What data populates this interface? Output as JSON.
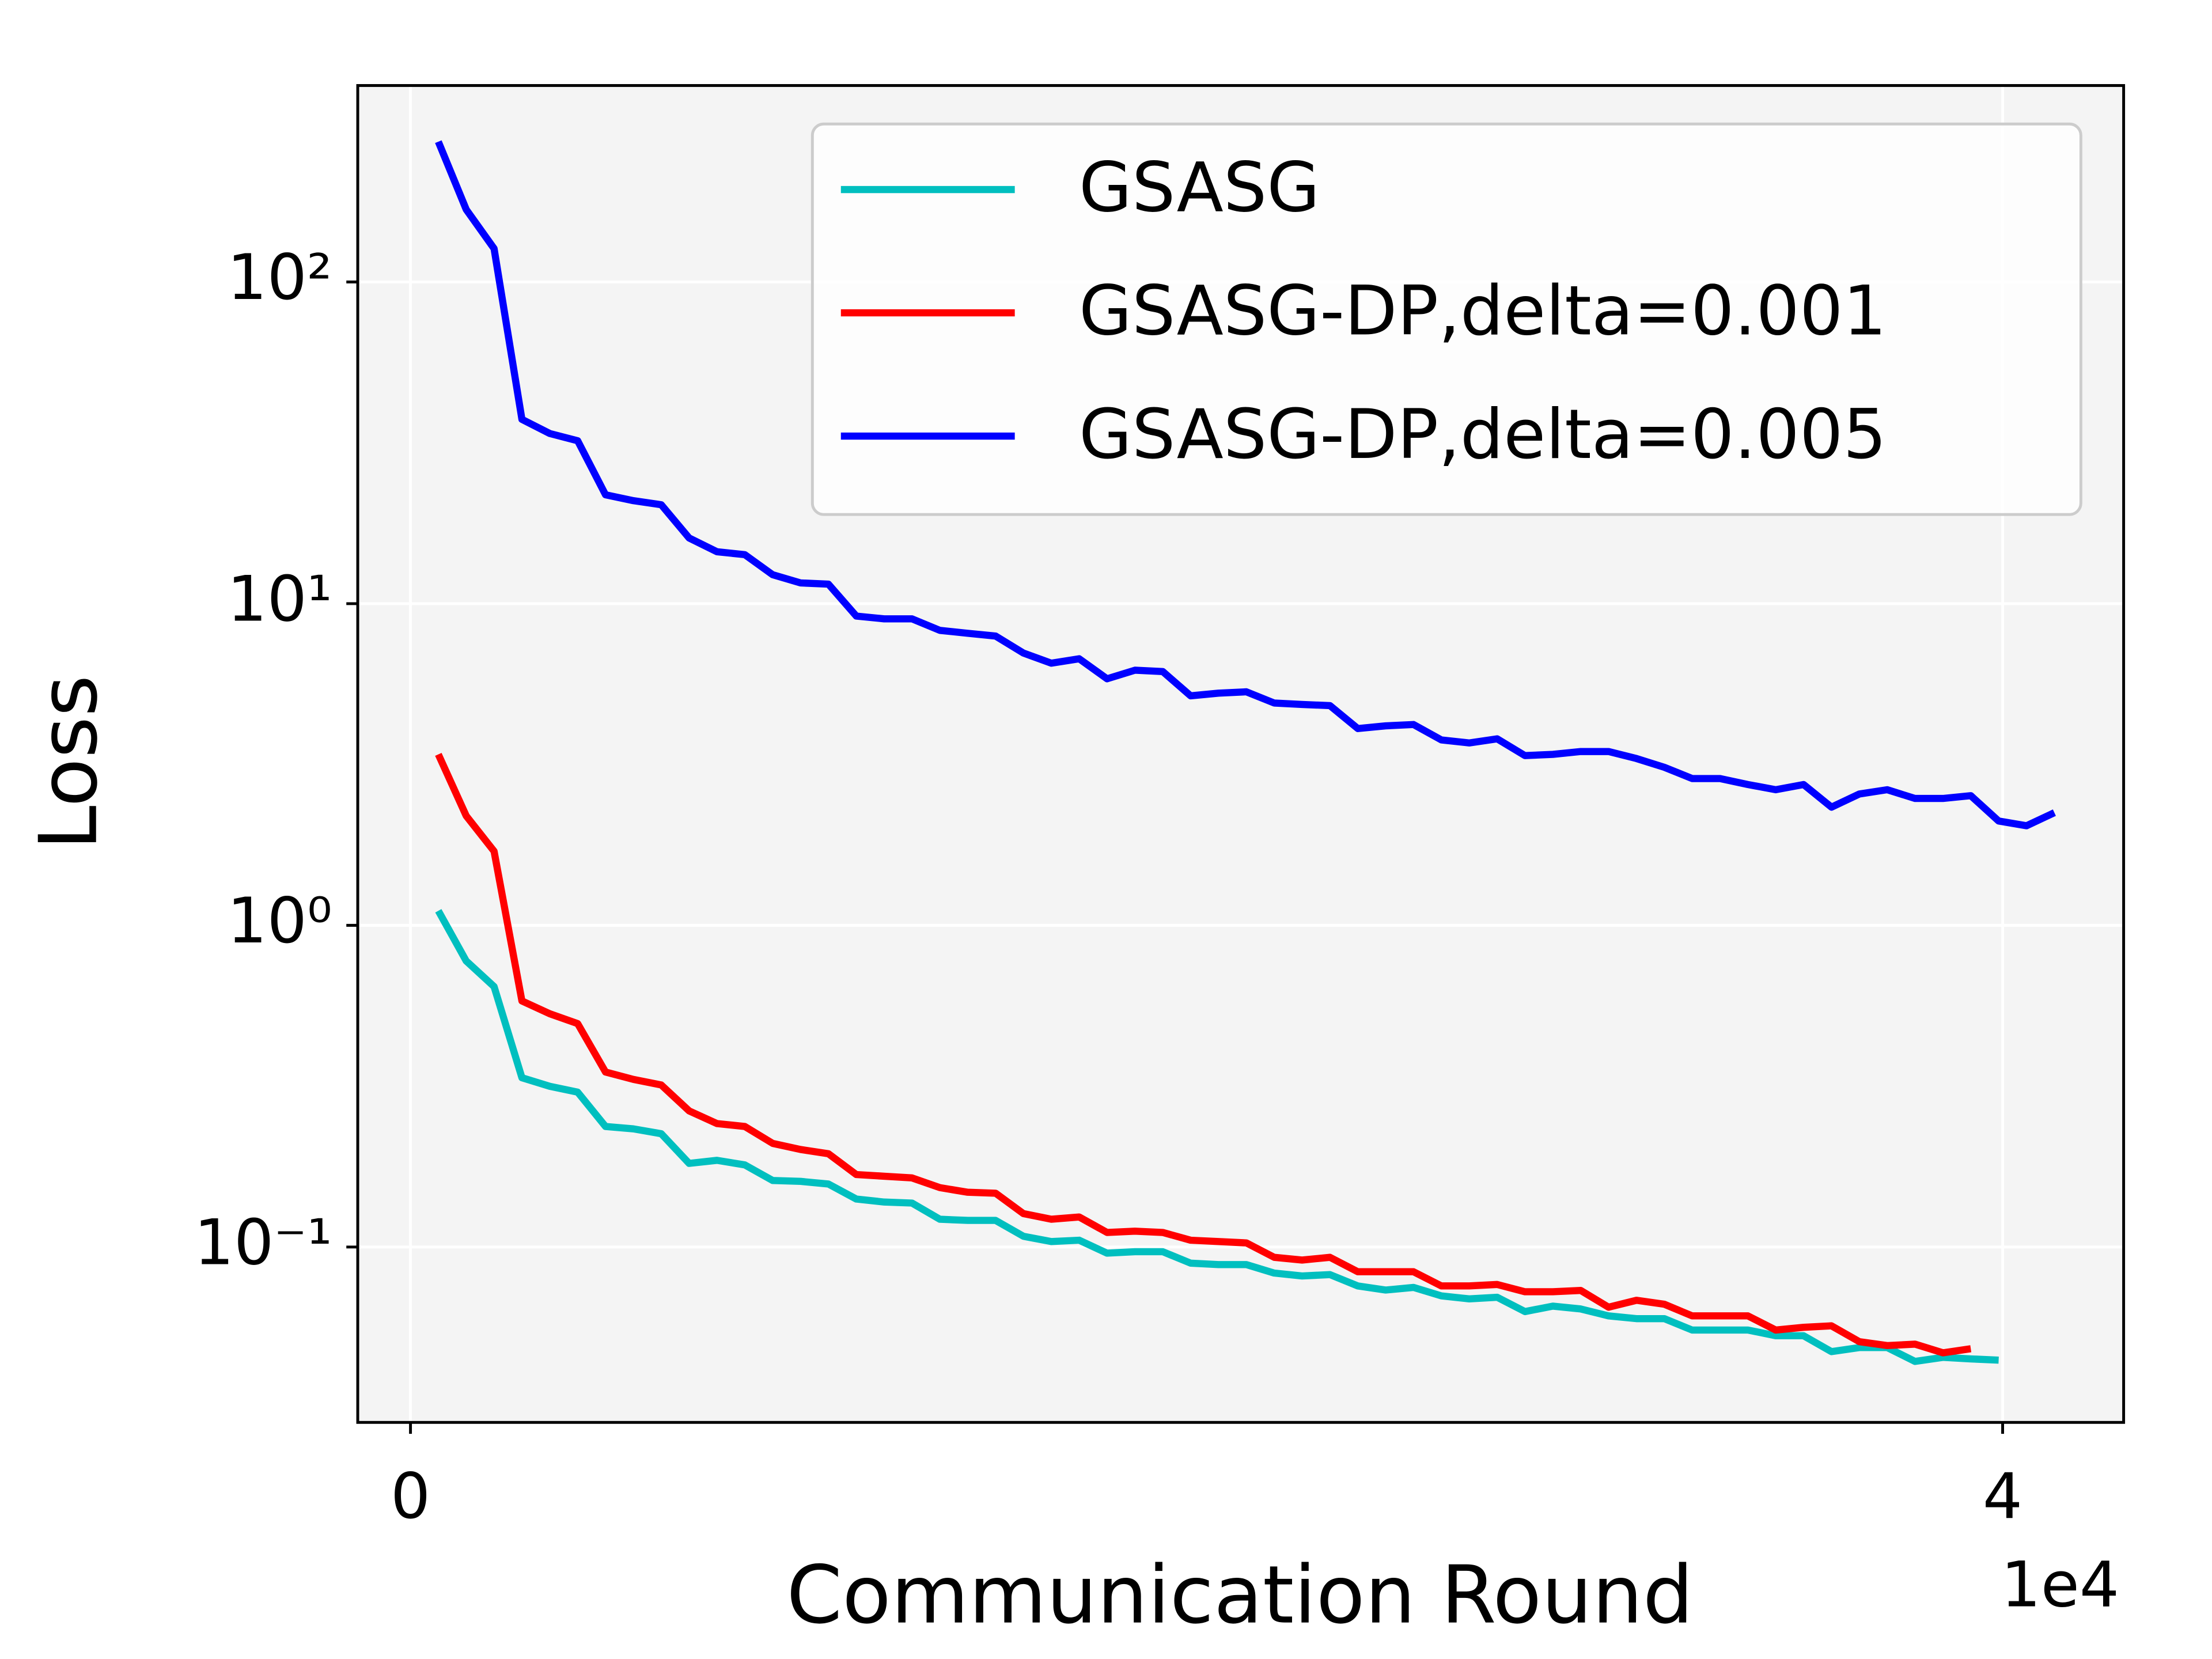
{
  "chart_data": {
    "type": "line",
    "xlabel": "Communication Round",
    "ylabel": "Loss",
    "x_offset_label": "1e4",
    "x": [
      0.07,
      0.14,
      0.21,
      0.28,
      0.35,
      0.42,
      0.49,
      0.56,
      0.63,
      0.7,
      0.77,
      0.84,
      0.91,
      0.98,
      1.05,
      1.12,
      1.19,
      1.26,
      1.33,
      1.4,
      1.47,
      1.54,
      1.61,
      1.68,
      1.75,
      1.82,
      1.89,
      1.96,
      2.03,
      2.1,
      2.17,
      2.24,
      2.31,
      2.38,
      2.45,
      2.52,
      2.59,
      2.66,
      2.73,
      2.8,
      2.87,
      2.94,
      3.01,
      3.08,
      3.15,
      3.22,
      3.29,
      3.36,
      3.43,
      3.5,
      3.57,
      3.64,
      3.71,
      3.78,
      3.85,
      3.92,
      3.99,
      4.06,
      4.13
    ],
    "series": [
      {
        "name": "GSASG",
        "color": "#00bfbf",
        "values": [
          1.11,
          0.775,
          0.645,
          0.336,
          0.316,
          0.303,
          0.237,
          0.233,
          0.225,
          0.182,
          0.186,
          0.18,
          0.161,
          0.16,
          0.157,
          0.141,
          0.138,
          0.137,
          0.122,
          0.121,
          0.121,
          0.108,
          0.104,
          0.105,
          0.0957,
          0.0967,
          0.0967,
          0.0891,
          0.0882,
          0.0882,
          0.083,
          0.0813,
          0.0821,
          0.0757,
          0.0735,
          0.0749,
          0.0705,
          0.069,
          0.0698,
          0.063,
          0.0655,
          0.0642,
          0.0611,
          0.0599,
          0.0599,
          0.0552,
          0.0552,
          0.0552,
          0.053,
          0.053,
          0.0473,
          0.0487,
          0.0487,
          0.0441,
          0.0454,
          0.0449,
          0.0445,
          null,
          null
        ]
      },
      {
        "name": "GSASG-DP,delta=0.001",
        "color": "#ff0000",
        "values": [
          3.4,
          2.19,
          1.7,
          0.582,
          0.531,
          0.495,
          0.35,
          0.332,
          0.319,
          0.265,
          0.242,
          0.237,
          0.21,
          0.201,
          0.195,
          0.168,
          0.166,
          0.164,
          0.153,
          0.148,
          0.147,
          0.127,
          0.122,
          0.124,
          0.111,
          0.112,
          0.111,
          0.105,
          0.104,
          0.103,
          0.0929,
          0.0911,
          0.0929,
          0.0838,
          0.0838,
          0.0838,
          0.0757,
          0.0757,
          0.0765,
          0.0726,
          0.0726,
          0.0733,
          0.065,
          0.0683,
          0.0664,
          0.0611,
          0.0611,
          0.0611,
          0.0552,
          0.0563,
          0.0569,
          0.0508,
          0.0494,
          0.0499,
          0.0469,
          0.0483,
          null,
          null,
          null
        ]
      },
      {
        "name": "GSASG-DP,delta=0.005",
        "color": "#0000ff",
        "values": [
          273,
          168,
          127,
          37.4,
          33.8,
          32.1,
          21.8,
          20.9,
          20.3,
          16.0,
          14.5,
          14.2,
          12.3,
          11.6,
          11.5,
          9.15,
          8.97,
          8.97,
          8.26,
          8.09,
          7.93,
          7.02,
          6.53,
          6.74,
          5.84,
          6.21,
          6.15,
          5.17,
          5.27,
          5.32,
          4.91,
          4.86,
          4.82,
          4.09,
          4.17,
          4.21,
          3.77,
          3.69,
          3.8,
          3.37,
          3.4,
          3.47,
          3.47,
          3.3,
          3.1,
          2.86,
          2.86,
          2.74,
          2.64,
          2.74,
          2.33,
          2.56,
          2.64,
          2.48,
          2.48,
          2.53,
          2.11,
          2.04,
          2.24
        ]
      }
    ],
    "xlim": [
      -0.1325,
      4.304
    ],
    "xticks": [
      0,
      4
    ],
    "ylim": [
      0.0285,
      408
    ],
    "yscale": "log",
    "yticks": [
      {
        "value": 0.1,
        "label": "10⁻¹"
      },
      {
        "value": 1,
        "label": "10⁰"
      },
      {
        "value": 10,
        "label": "10¹"
      },
      {
        "value": 100,
        "label": "10²"
      }
    ],
    "grid": true,
    "legend": "upper right"
  }
}
